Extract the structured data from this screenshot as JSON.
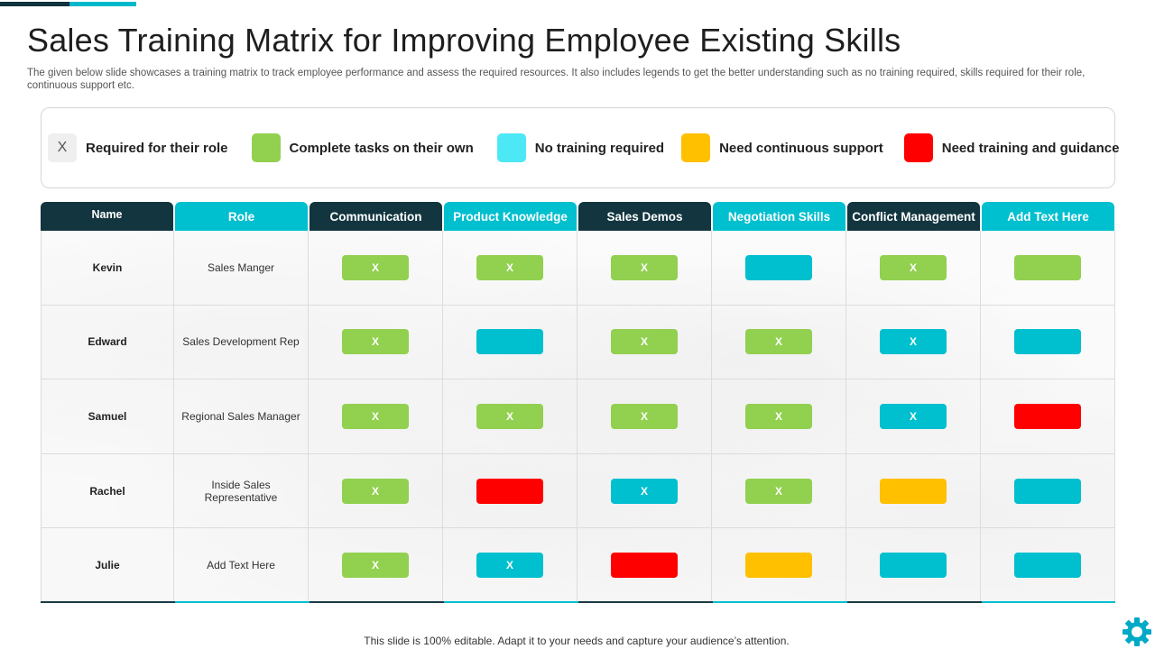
{
  "slide": {
    "title": "Sales Training Matrix for Improving Employee Existing Skills",
    "subtitle": "The given below slide showcases a training matrix to track  employee performance and assess the required resources. It also includes legends to get the better understanding such as no training required, skills required for their role,  continuous support etc.",
    "footer": "This slide is 100% editable. Adapt it to your needs and capture your audience’s attention."
  },
  "colors": {
    "dark": "#12353f",
    "cyan": "#00bfcf",
    "green": "#92d050",
    "light_cyan": "#4de8f5",
    "yellow": "#ffc000",
    "red": "#ff0000",
    "grey": "#efefef"
  },
  "legend": [
    {
      "key": "x",
      "label": "Required for their role",
      "mark": "X",
      "color": "#efefef"
    },
    {
      "key": "green",
      "label": "Complete tasks on their own",
      "mark": "",
      "color": "#92d050"
    },
    {
      "key": "light_cyan",
      "label": "No training required",
      "mark": "",
      "color": "#4de8f5"
    },
    {
      "key": "yellow",
      "label": "Need continuous support",
      "mark": "",
      "color": "#ffc000"
    },
    {
      "key": "red",
      "label": "Need training and guidance",
      "mark": "",
      "color": "#ff0000"
    }
  ],
  "table": {
    "headers": [
      {
        "label": "Name",
        "style": "dark"
      },
      {
        "label": "Role",
        "style": "cyan"
      },
      {
        "label": "Communication",
        "style": "dark"
      },
      {
        "label": "Product Knowledge",
        "style": "cyan"
      },
      {
        "label": "Sales Demos",
        "style": "dark"
      },
      {
        "label": "Negotiation Skills",
        "style": "cyan"
      },
      {
        "label": "Conflict Management",
        "style": "dark"
      },
      {
        "label": "Add Text Here",
        "style": "cyan"
      }
    ],
    "rows": [
      {
        "name": "Kevin",
        "role": "Sales Manger",
        "skills": [
          {
            "color": "#92d050",
            "mark": "X"
          },
          {
            "color": "#92d050",
            "mark": "X"
          },
          {
            "color": "#92d050",
            "mark": "X"
          },
          {
            "color": "#00bfcf",
            "mark": ""
          },
          {
            "color": "#92d050",
            "mark": "X"
          },
          {
            "color": "#92d050",
            "mark": ""
          }
        ]
      },
      {
        "name": "Edward",
        "role": "Sales Development Rep",
        "skills": [
          {
            "color": "#92d050",
            "mark": "X"
          },
          {
            "color": "#00bfcf",
            "mark": ""
          },
          {
            "color": "#92d050",
            "mark": "X"
          },
          {
            "color": "#92d050",
            "mark": "X"
          },
          {
            "color": "#00bfcf",
            "mark": "X"
          },
          {
            "color": "#00bfcf",
            "mark": ""
          }
        ]
      },
      {
        "name": "Samuel",
        "role": "Regional Sales Manager",
        "skills": [
          {
            "color": "#92d050",
            "mark": "X"
          },
          {
            "color": "#92d050",
            "mark": "X"
          },
          {
            "color": "#92d050",
            "mark": "X"
          },
          {
            "color": "#92d050",
            "mark": "X"
          },
          {
            "color": "#00bfcf",
            "mark": "X"
          },
          {
            "color": "#ff0000",
            "mark": ""
          }
        ]
      },
      {
        "name": "Rachel",
        "role": "Inside Sales Representative",
        "skills": [
          {
            "color": "#92d050",
            "mark": "X"
          },
          {
            "color": "#ff0000",
            "mark": ""
          },
          {
            "color": "#00bfcf",
            "mark": "X"
          },
          {
            "color": "#92d050",
            "mark": "X"
          },
          {
            "color": "#ffc000",
            "mark": ""
          },
          {
            "color": "#00bfcf",
            "mark": ""
          }
        ]
      },
      {
        "name": "Julie",
        "role": "Add Text Here",
        "skills": [
          {
            "color": "#92d050",
            "mark": "X"
          },
          {
            "color": "#00bfcf",
            "mark": "X"
          },
          {
            "color": "#ff0000",
            "mark": ""
          },
          {
            "color": "#ffc000",
            "mark": ""
          },
          {
            "color": "#00bfcf",
            "mark": ""
          },
          {
            "color": "#00bfcf",
            "mark": ""
          }
        ]
      }
    ]
  }
}
